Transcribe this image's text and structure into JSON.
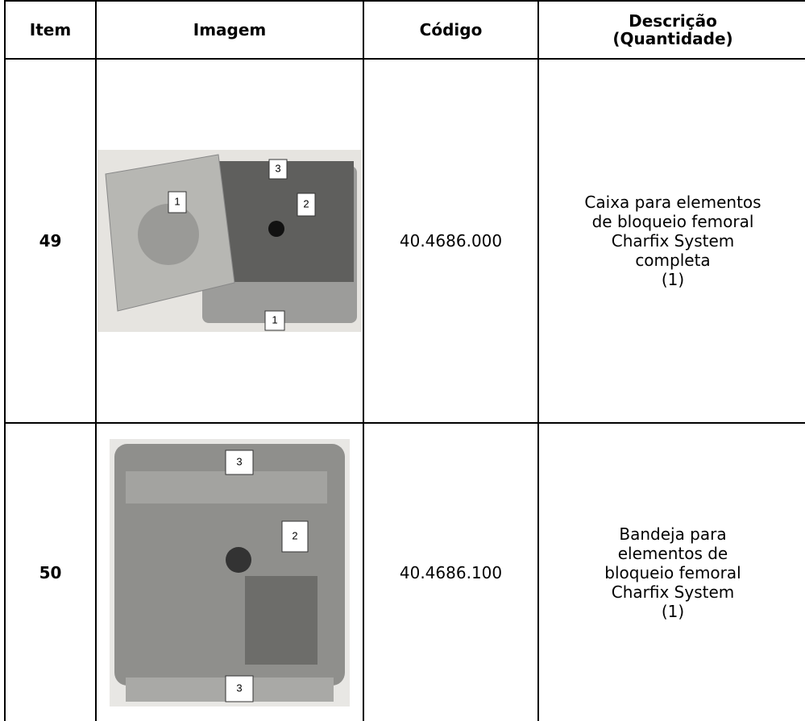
{
  "table": {
    "header": {
      "item": "Item",
      "image": "Imagem",
      "code": "Código",
      "description": [
        "Descrição",
        "(Quantidade)"
      ]
    },
    "rows": [
      {
        "item": "49",
        "image": {
          "callouts": [
            "1",
            "3",
            "2",
            "1"
          ]
        },
        "code": "40.4686.000",
        "description": [
          "Caixa para elementos",
          "de bloqueio femoral",
          "Charfix System",
          "completa",
          "(1)"
        ]
      },
      {
        "item": "50",
        "image": {
          "callouts": [
            "3",
            "2",
            "3"
          ]
        },
        "code": "40.4686.100",
        "description": [
          "Bandeja para",
          "elementos de",
          "bloqueio femoral",
          "Charfix System",
          "(1)"
        ]
      }
    ]
  }
}
